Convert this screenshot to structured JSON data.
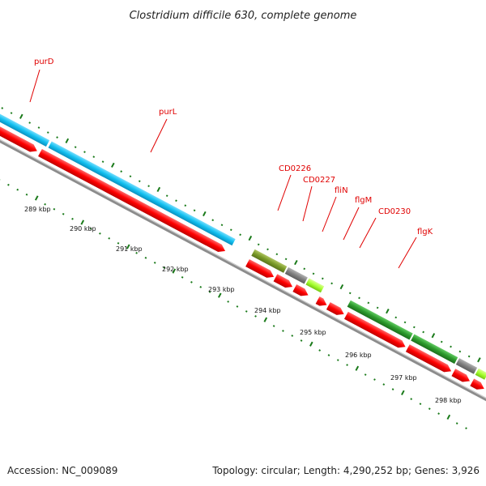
{
  "title": "Clostridium difficile 630, complete genome",
  "footer": {
    "accession": "Accession: NC_009089",
    "summary": "Topology: circular; Length: 4,290,252 bp; Genes: 3,926"
  },
  "colors": {
    "cds": "#ff0000",
    "purine": "#12c0f0",
    "flagellar": "#2c9a2c",
    "olive": "#7a9a28",
    "grey": "#808080",
    "lime": "#a6ff30",
    "label": "#e00000",
    "tick": "#1a7a1a"
  },
  "genes": [
    {
      "label": "purD"
    },
    {
      "label": "purL"
    },
    {
      "label": "CD0226"
    },
    {
      "label": "CD0227"
    },
    {
      "label": "fliN"
    },
    {
      "label": "flgM"
    },
    {
      "label": "CD0230"
    },
    {
      "label": "flgK"
    }
  ],
  "scale_ticks": [
    "289 kbp",
    "290 kbp",
    "291 kbp",
    "292 kbp",
    "293 kbp",
    "294 kbp",
    "295 kbp",
    "296 kbp",
    "297 kbp",
    "298 kbp"
  ]
}
